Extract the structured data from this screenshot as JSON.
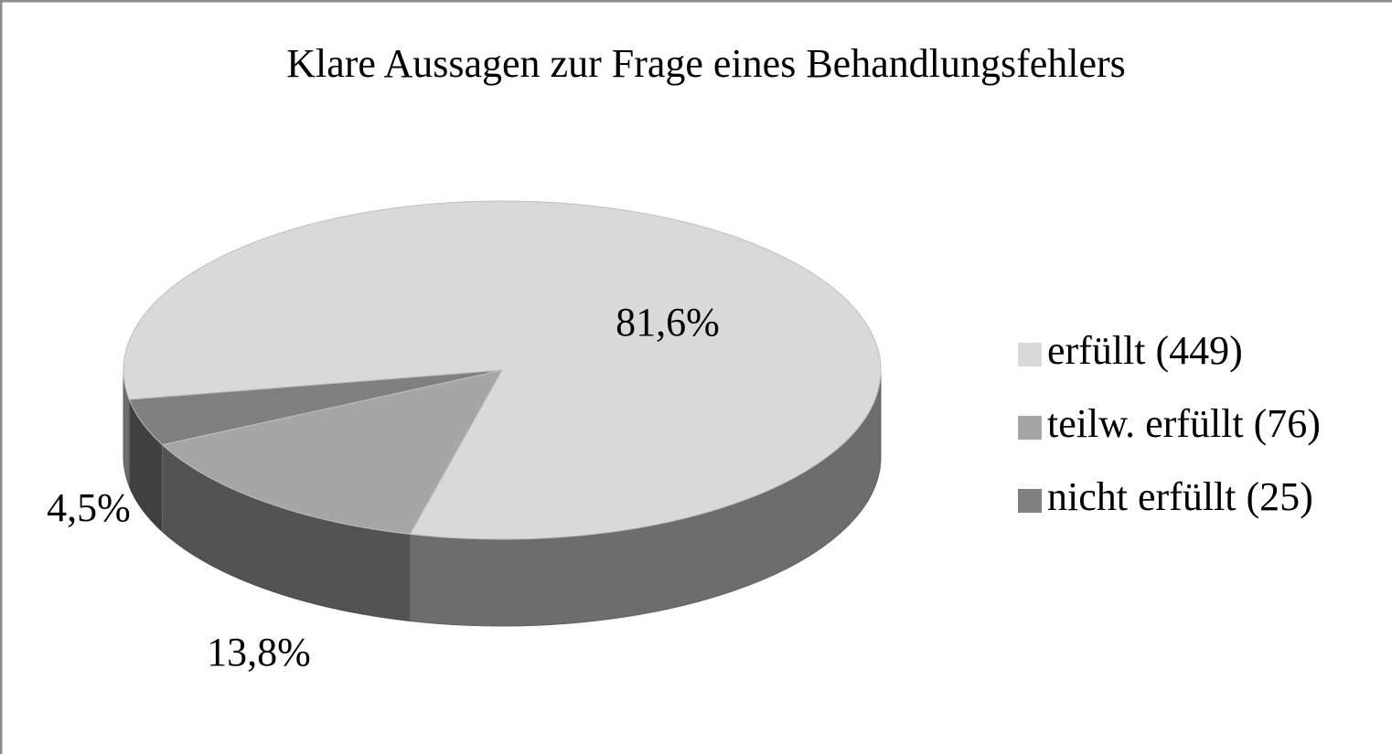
{
  "chart_data": {
    "type": "pie3d",
    "title": "Klare Aussagen zur Frage eines Behandlungsfehlers",
    "categories": [
      "erfüllt (449)",
      "teilw. erfüllt (76)",
      "nicht erfüllt (25)"
    ],
    "values": [
      81.6,
      13.8,
      4.5
    ],
    "value_labels": [
      "81,6%",
      "13,8%",
      "4,5%"
    ],
    "colors": [
      "#d9d9d9",
      "#a6a6a6",
      "#808080"
    ],
    "legend": "right"
  }
}
